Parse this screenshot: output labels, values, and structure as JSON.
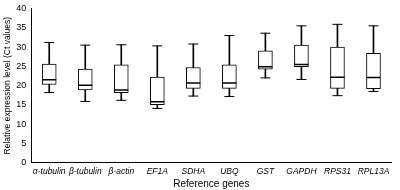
{
  "chart_data": {
    "type": "box",
    "x_label": "Reference genes",
    "y_label": "Relative expression level (Ct values)",
    "categories": [
      "α-tubulin",
      "β-tubulin",
      "β-actin",
      "EF1A",
      "SDHA",
      "UBQ",
      "GST",
      "GAPDH",
      "RPS31",
      "RPL13A"
    ],
    "min": [
      18.2,
      15.9,
      16.2,
      14.1,
      17.3,
      17.2,
      22.0,
      21.6,
      17.4,
      18.5
    ],
    "q1": [
      20.3,
      18.9,
      18.2,
      15.1,
      19.3,
      19.3,
      24.3,
      24.9,
      19.3,
      19.2
    ],
    "median": [
      21.5,
      20.1,
      18.9,
      15.8,
      20.7,
      20.7,
      24.9,
      25.5,
      22.2,
      22.1
    ],
    "q3": [
      25.6,
      24.3,
      25.4,
      22.2,
      24.7,
      25.4,
      29.0,
      30.5,
      30.0,
      28.4
    ],
    "max": [
      31.2,
      30.5,
      30.6,
      30.3,
      30.8,
      33.0,
      33.6,
      35.5,
      35.9,
      35.5
    ],
    "color": "#000000",
    "ylim": [
      0,
      40
    ],
    "yticks": [
      0,
      5,
      10,
      15,
      20,
      25,
      30,
      35,
      40
    ],
    "grid": false
  }
}
